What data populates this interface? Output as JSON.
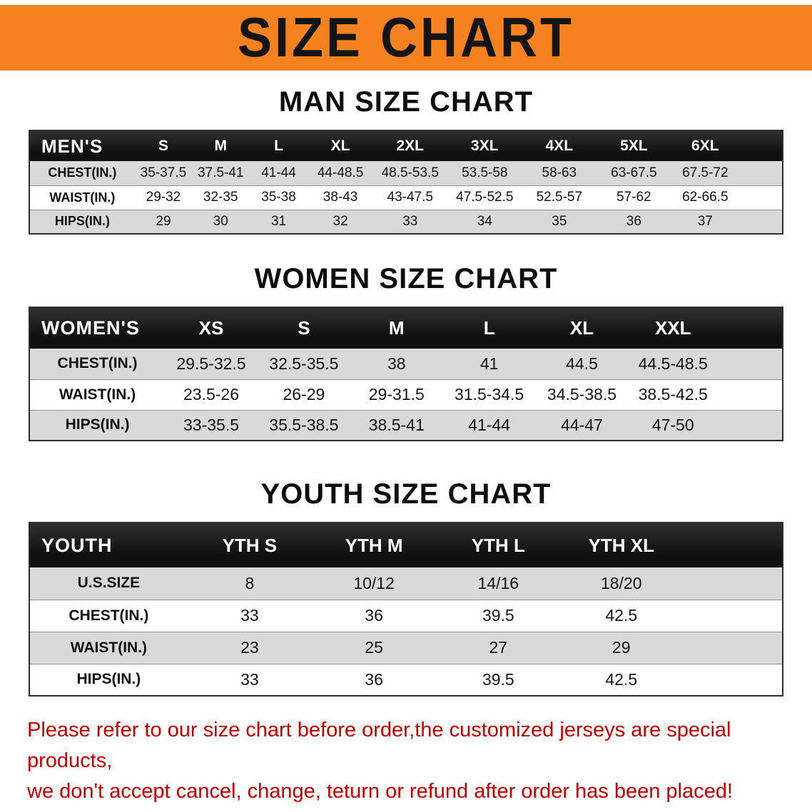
{
  "banner": {
    "title": "SIZE CHART"
  },
  "colors": {
    "banner_bg": "#F5821F",
    "table_header_bg": "#101010",
    "row_stripe": "#D9D9D9",
    "disclaimer_text": "#C40000"
  },
  "sections": {
    "men": {
      "heading": "MAN SIZE CHART",
      "table": {
        "header": [
          "MEN'S",
          "S",
          "M",
          "L",
          "XL",
          "2XL",
          "3XL",
          "4XL",
          "5XL",
          "6XL"
        ],
        "rows": [
          [
            "CHEST(IN.)",
            "35-37.5",
            "37.5-41",
            "41-44",
            "44-48.5",
            "48.5-53.5",
            "53.5-58",
            "58-63",
            "63-67.5",
            "67.5-72"
          ],
          [
            "WAIST(IN.)",
            "29-32",
            "32-35",
            "35-38",
            "38-43",
            "43-47.5",
            "47.5-52.5",
            "52.5-57",
            "57-62",
            "62-66.5"
          ],
          [
            "HIPS(IN.)",
            "29",
            "30",
            "31",
            "32",
            "33",
            "34",
            "35",
            "36",
            "37"
          ]
        ]
      }
    },
    "women": {
      "heading": "WOMEN SIZE CHART",
      "table": {
        "header": [
          "WOMEN'S",
          "XS",
          "S",
          "M",
          "L",
          "XL",
          "XXL"
        ],
        "rows": [
          [
            "CHEST(IN.)",
            "29.5-32.5",
            "32.5-35.5",
            "38",
            "41",
            "44.5",
            "44.5-48.5"
          ],
          [
            "WAIST(IN.)",
            "23.5-26",
            "26-29",
            "29-31.5",
            "31.5-34.5",
            "34.5-38.5",
            "38.5-42.5"
          ],
          [
            "HIPS(IN.)",
            "33-35.5",
            "35.5-38.5",
            "38.5-41",
            "41-44",
            "44-47",
            "47-50"
          ]
        ]
      }
    },
    "youth": {
      "heading": "YOUTH SIZE CHART",
      "table": {
        "header": [
          "YOUTH",
          "YTH S",
          "YTH M",
          "YTH L",
          "YTH XL"
        ],
        "rows": [
          [
            "U.S.SIZE",
            "8",
            "10/12",
            "14/16",
            "18/20"
          ],
          [
            "CHEST(IN.)",
            "33",
            "36",
            "39.5",
            "42.5"
          ],
          [
            "WAIST(IN.)",
            "23",
            "25",
            "27",
            "29"
          ],
          [
            "HIPS(IN.)",
            "33",
            "36",
            "39.5",
            "42.5"
          ]
        ]
      }
    }
  },
  "disclaimer": {
    "line1": "Please refer to our size chart before order,the customized jerseys are special products,",
    "line2": "we don't accept cancel, change, teturn or refund after order has been placed!"
  }
}
